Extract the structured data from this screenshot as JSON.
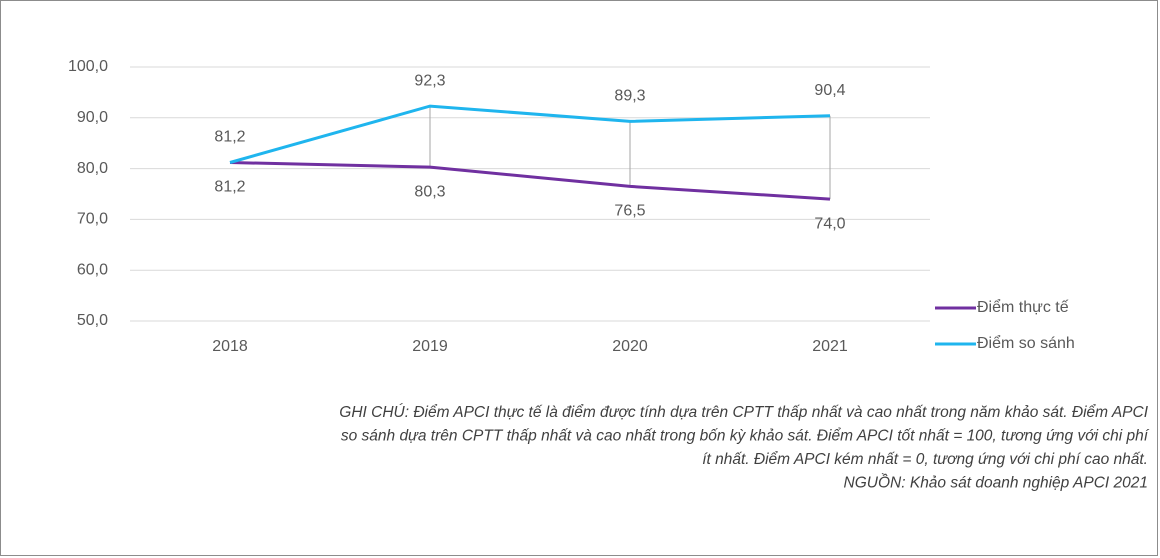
{
  "chart_data": {
    "type": "line",
    "categories": [
      "2018",
      "2019",
      "2020",
      "2021"
    ],
    "series": [
      {
        "name": "Điểm thực tế",
        "color": "#7030a0",
        "values": [
          81.2,
          80.3,
          76.5,
          74.0
        ],
        "value_labels": [
          "81,2",
          "80,3",
          "76,5",
          "74,0"
        ]
      },
      {
        "name": "Điểm so sánh",
        "color": "#1fb5ee",
        "values": [
          81.2,
          92.3,
          89.3,
          90.4
        ],
        "value_labels": [
          "81,2",
          "92,3",
          "89,3",
          "90,4"
        ]
      }
    ],
    "ylim": [
      50,
      100
    ],
    "yticks": [
      {
        "value": 50,
        "label": "50,0"
      },
      {
        "value": 60,
        "label": "60,0"
      },
      {
        "value": 70,
        "label": "70,0"
      },
      {
        "value": 80,
        "label": "80,0"
      },
      {
        "value": 90,
        "label": "90,0"
      },
      {
        "value": 100,
        "label": "100,0"
      }
    ],
    "grid": true,
    "legend": "right",
    "notes": [
      "GHI CHÚ: Điểm APCI thực tế là điểm được tính dựa trên CPTT thấp nhất và cao nhất trong năm khảo sát. Điểm APCI",
      "so sánh dựa trên CPTT thấp nhất và cao nhất trong bốn kỳ khảo sát. Điểm APCI tốt nhất = 100, tương ứng với chi phí",
      "ít nhất. Điểm APCI kém nhất = 0, tương ứng với chi phí cao nhất.",
      "NGUỒN: Khảo sát doanh nghiệp APCI 2021"
    ]
  }
}
